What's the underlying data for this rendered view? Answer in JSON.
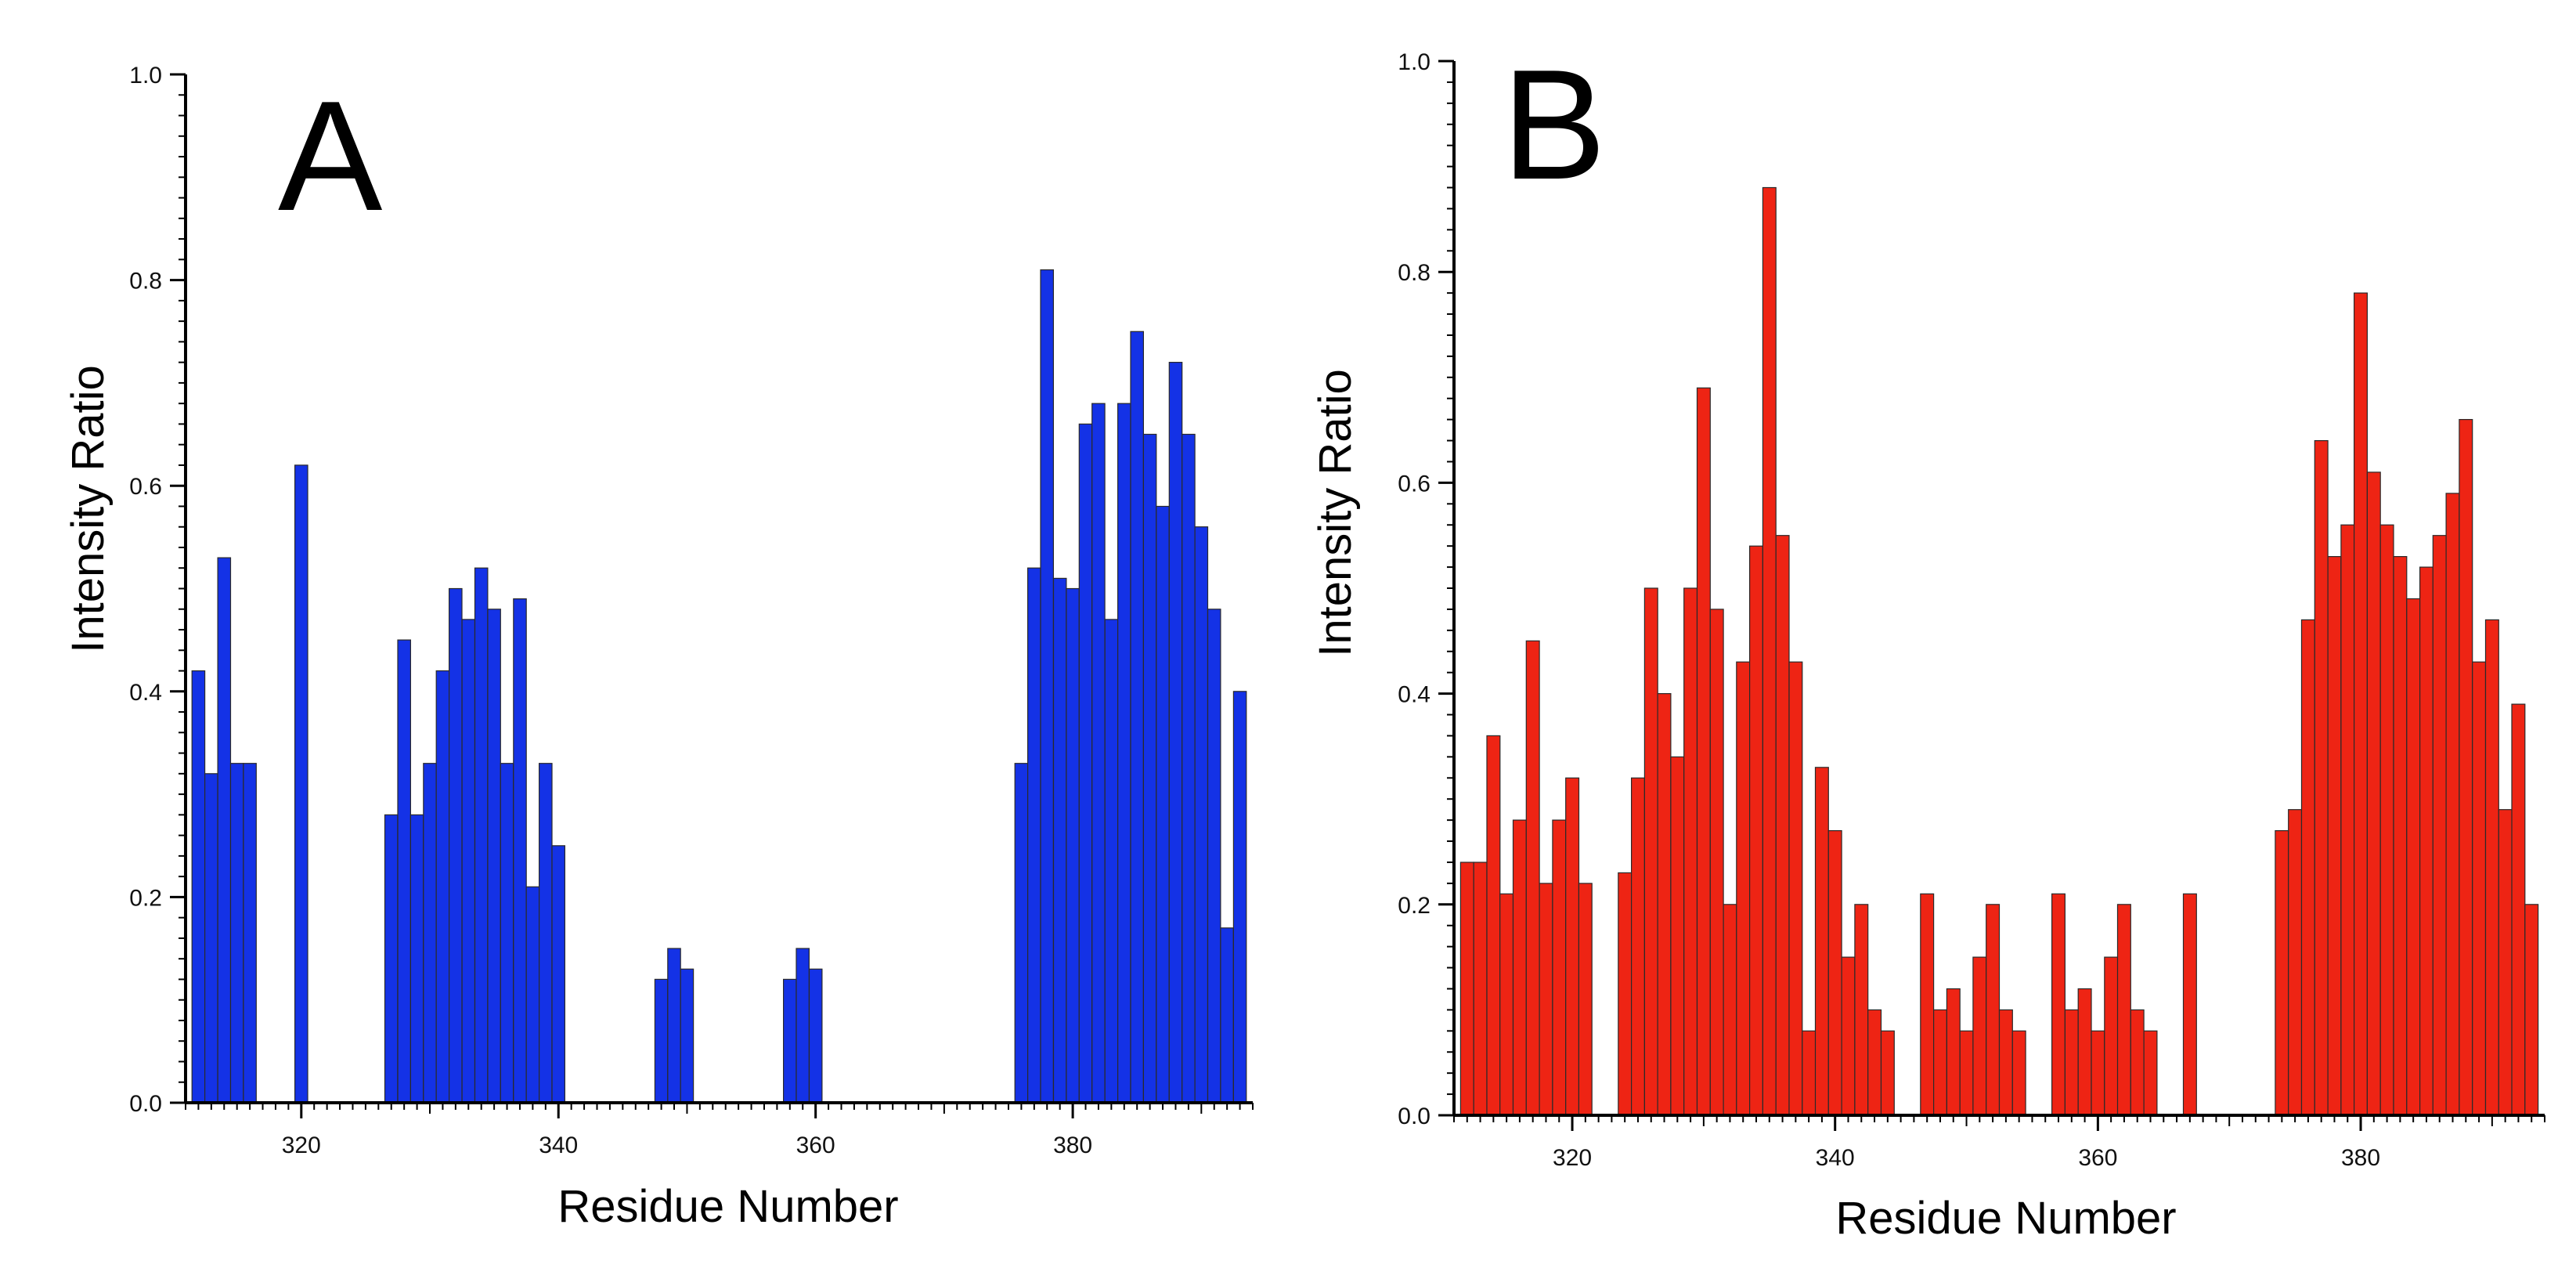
{
  "chart_data": [
    {
      "type": "bar",
      "panel_label": "A",
      "xlabel": "Residue Number",
      "ylabel": "Intensity Ratio",
      "xlim": [
        311,
        394
      ],
      "ylim": [
        0,
        1.0
      ],
      "x_ticks": [
        "320",
        "340",
        "360",
        "380"
      ],
      "y_ticks": [
        "0.0",
        "0.2",
        "0.4",
        "0.6",
        "0.8",
        "1.0"
      ],
      "bar_color": "#1432e6",
      "series": [
        {
          "name": "A",
          "x": [
            312,
            313,
            314,
            315,
            316,
            320,
            327,
            328,
            329,
            330,
            331,
            332,
            333,
            334,
            335,
            336,
            337,
            338,
            339,
            340,
            348,
            349,
            350,
            358,
            359,
            360,
            376,
            377,
            378,
            379,
            380,
            381,
            382,
            383,
            384,
            385,
            386,
            387,
            388,
            389,
            390,
            391,
            392,
            393
          ],
          "values": [
            0.42,
            0.32,
            0.53,
            0.33,
            0.33,
            0.62,
            0.28,
            0.45,
            0.28,
            0.33,
            0.42,
            0.5,
            0.47,
            0.52,
            0.48,
            0.33,
            0.49,
            0.21,
            0.33,
            0.25,
            0.12,
            0.15,
            0.13,
            0.12,
            0.15,
            0.13,
            0.33,
            0.52,
            0.81,
            0.51,
            0.5,
            0.66,
            0.68,
            0.47,
            0.68,
            0.75,
            0.65,
            0.58,
            0.72,
            0.65,
            0.56,
            0.48,
            0.17,
            0.4
          ]
        }
      ]
    },
    {
      "type": "bar",
      "panel_label": "B",
      "xlabel": "Residue Number",
      "ylabel": "Intensity Ratio",
      "xlim": [
        311,
        394
      ],
      "ylim": [
        0,
        1.0
      ],
      "x_ticks": [
        "320",
        "340",
        "360",
        "380"
      ],
      "y_ticks": [
        "0.0",
        "0.2",
        "0.4",
        "0.6",
        "0.8",
        "1.0"
      ],
      "bar_color": "#ee2414",
      "series": [
        {
          "name": "B",
          "x": [
            312,
            313,
            314,
            315,
            316,
            317,
            318,
            319,
            320,
            321,
            324,
            325,
            326,
            327,
            328,
            329,
            330,
            331,
            332,
            333,
            334,
            335,
            336,
            337,
            338,
            339,
            340,
            341,
            342,
            343,
            344,
            347,
            348,
            349,
            350,
            351,
            352,
            353,
            354,
            357,
            358,
            359,
            360,
            361,
            362,
            363,
            364,
            367,
            374,
            375,
            376,
            377,
            378,
            379,
            380,
            381,
            382,
            383,
            384,
            385,
            386,
            387,
            388,
            389,
            390,
            391,
            392,
            393
          ],
          "values": [
            0.24,
            0.24,
            0.36,
            0.21,
            0.28,
            0.45,
            0.22,
            0.28,
            0.32,
            0.22,
            0.23,
            0.32,
            0.5,
            0.4,
            0.34,
            0.5,
            0.69,
            0.48,
            0.2,
            0.43,
            0.54,
            0.88,
            0.55,
            0.43,
            0.08,
            0.33,
            0.27,
            0.15,
            0.2,
            0.1,
            0.08,
            0.21,
            0.1,
            0.12,
            0.08,
            0.15,
            0.2,
            0.1,
            0.08,
            0.21,
            0.1,
            0.12,
            0.08,
            0.15,
            0.2,
            0.1,
            0.08,
            0.21,
            0.27,
            0.29,
            0.47,
            0.64,
            0.53,
            0.56,
            0.78,
            0.61,
            0.56,
            0.53,
            0.49,
            0.52,
            0.55,
            0.59,
            0.66,
            0.43,
            0.47,
            0.29,
            0.39,
            0.2
          ]
        }
      ]
    }
  ]
}
